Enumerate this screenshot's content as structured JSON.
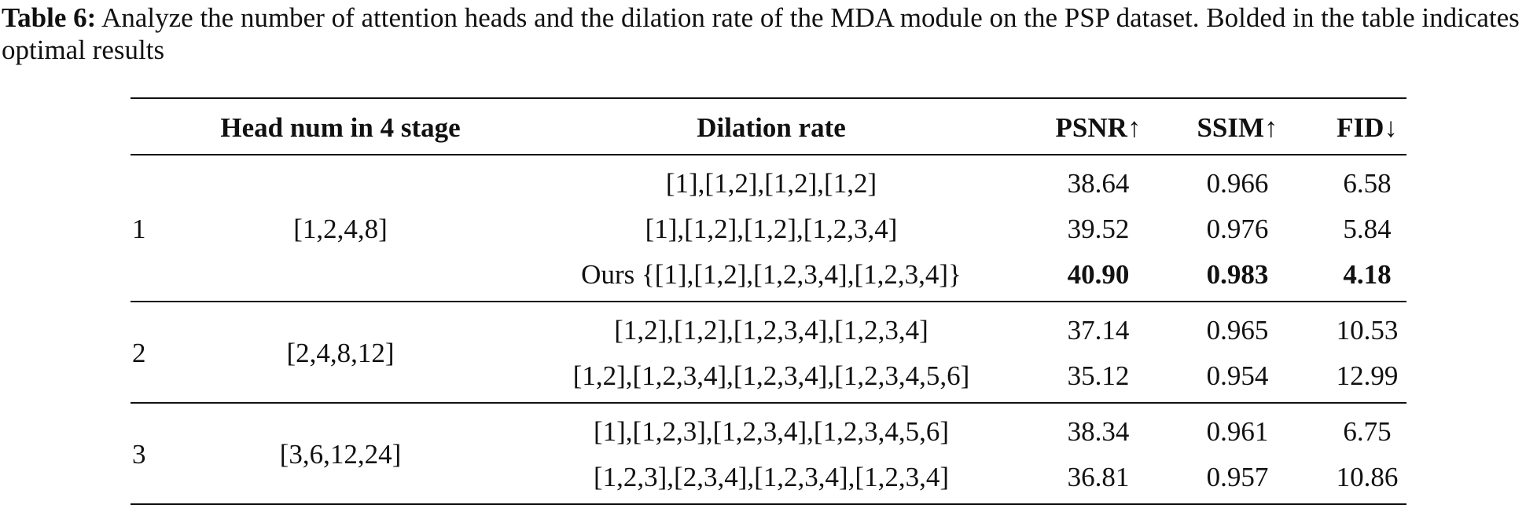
{
  "caption": {
    "label": "Table 6:",
    "text": "Analyze the number of attention heads and the dilation rate of the MDA module on the PSP dataset. Bolded in the table indicates optimal results"
  },
  "table": {
    "header": [
      "Head num in 4 stage",
      "Dilation rate",
      "PSNR↑",
      "SSIM↑",
      "FID↓"
    ],
    "groups": [
      {
        "id": "1",
        "heads": "[1,2,4,8]",
        "rows": [
          {
            "cells": [
              "[1],[1,2],[1,2],[1,2]",
              "38.64",
              "0.966",
              "6.58"
            ],
            "bold": false
          },
          {
            "cells": [
              "[1],[1,2],[1,2],[1,2,3,4]",
              "39.52",
              "0.976",
              "5.84"
            ],
            "bold": false
          },
          {
            "cells": [
              "Ours {[1],[1,2],[1,2,3,4],[1,2,3,4]}",
              "40.90",
              "0.983",
              "4.18"
            ],
            "bold": true
          }
        ]
      },
      {
        "id": "2",
        "heads": "[2,4,8,12]",
        "rows": [
          {
            "cells": [
              "[1,2],[1,2],[1,2,3,4],[1,2,3,4]",
              "37.14",
              "0.965",
              "10.53"
            ],
            "bold": false
          },
          {
            "cells": [
              "[1,2],[1,2,3,4],[1,2,3,4],[1,2,3,4,5,6]",
              "35.12",
              "0.954",
              "12.99"
            ],
            "bold": false
          }
        ]
      },
      {
        "id": "3",
        "heads": "[3,6,12,24]",
        "rows": [
          {
            "cells": [
              "[1],[1,2,3],[1,2,3,4],[1,2,3,4,5,6]",
              "38.34",
              "0.961",
              "6.75"
            ],
            "bold": false
          },
          {
            "cells": [
              "[1,2,3],[2,3,4],[1,2,3,4],[1,2,3,4]",
              "36.81",
              "0.957",
              "10.86"
            ],
            "bold": false
          }
        ]
      }
    ]
  }
}
